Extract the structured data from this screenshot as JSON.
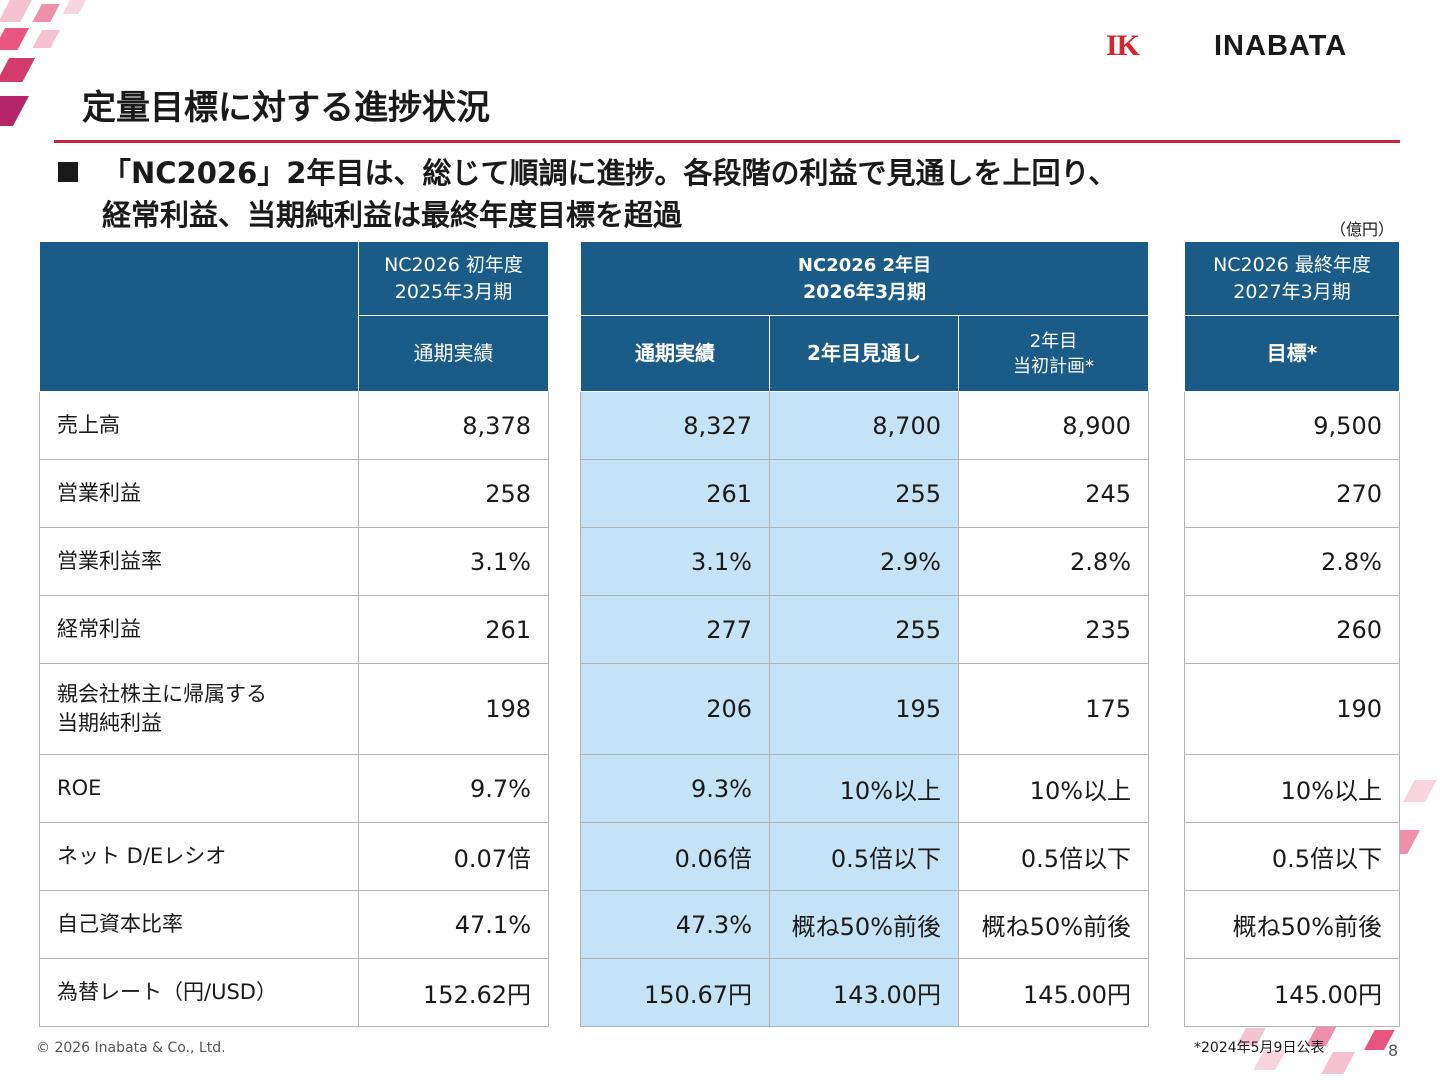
{
  "header": {
    "brand_mark": "IK",
    "brand_name": "INABATA",
    "title": "定量目標に対する進捗状況"
  },
  "headline": {
    "line1": "「NC2026」2年目は、総じて順調に進捗。各段階の利益で見通しを上回り、",
    "line2": "経常利益、当期純利益は最終年度目標を超過"
  },
  "unit_label": "（億円）",
  "table": {
    "groups": {
      "first": {
        "line1": "NC2026 初年度",
        "line2": "2025年3月期"
      },
      "second": {
        "line1": "NC2026 2年目",
        "line2": "2026年3月期"
      },
      "final": {
        "line1": "NC2026 最終年度",
        "line2": "2027年3月期"
      }
    },
    "subheaders": {
      "fy25_actual": "通期実績",
      "fy26_actual": "通期実績",
      "fy26_forecast": "2年目見通し",
      "fy26_plan_line1": "2年目",
      "fy26_plan_line2": "当初計画*",
      "target": "目標*"
    },
    "rows": [
      {
        "label1": "売上高",
        "label2": "",
        "v": [
          "8,378",
          "8,327",
          "8,700",
          "8,900",
          "9,500"
        ]
      },
      {
        "label1": "営業利益",
        "label2": "",
        "v": [
          "258",
          "261",
          "255",
          "245",
          "270"
        ]
      },
      {
        "label1": "営業利益率",
        "label2": "",
        "v": [
          "3.1%",
          "3.1%",
          "2.9%",
          "2.8%",
          "2.8%"
        ]
      },
      {
        "label1": "経常利益",
        "label2": "",
        "v": [
          "261",
          "277",
          "255",
          "235",
          "260"
        ]
      },
      {
        "label1": "親会社株主に帰属する",
        "label2": "当期純利益",
        "v": [
          "198",
          "206",
          "195",
          "175",
          "190"
        ]
      },
      {
        "label1": "ROE",
        "label2": "",
        "v": [
          "9.7%",
          "9.3%",
          "10%以上",
          "10%以上",
          "10%以上"
        ]
      },
      {
        "label1": "ネット D/Eレシオ",
        "label2": "",
        "v": [
          "0.07倍",
          "0.06倍",
          "0.5倍以下",
          "0.5倍以下",
          "0.5倍以下"
        ]
      },
      {
        "label1": "自己資本比率",
        "label2": "",
        "v": [
          "47.1%",
          "47.3%",
          "概ね50%前後",
          "概ね50%前後",
          "概ね50%前後"
        ]
      },
      {
        "label1": "為替レート（円/USD）",
        "label2": "",
        "v": [
          "152.62円",
          "150.67円",
          "143.00円",
          "145.00円",
          "145.00円"
        ]
      }
    ]
  },
  "footer": {
    "copyright": "© 2026 Inabata & Co., Ltd.",
    "footnote": "*2024年5月9日公表",
    "page_number": "8"
  },
  "colors": {
    "header_blue": "#1b5b87",
    "highlight_blue": "#c5e3f6",
    "accent_red": "#c6253f",
    "deco_pink": "#e8557f"
  }
}
